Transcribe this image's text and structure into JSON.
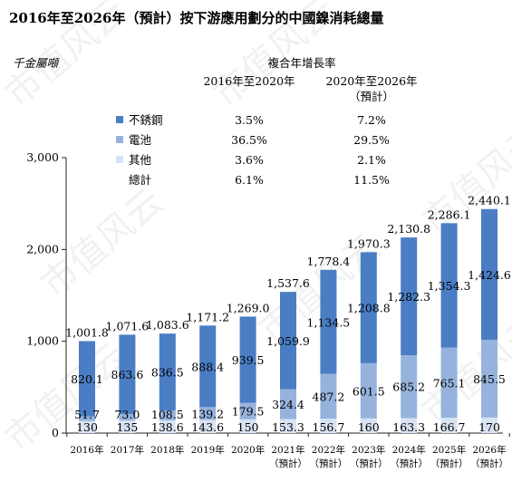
{
  "chart_data": {
    "type": "bar",
    "title": "2016年至2026年（預計）按下游應用劃分的中國鎳消耗總量",
    "unit": "千金屬噸",
    "categories": [
      [
        "2016年"
      ],
      [
        "2017年"
      ],
      [
        "2018年"
      ],
      [
        "2019年"
      ],
      [
        "2020年"
      ],
      [
        "2021年",
        "（預計）"
      ],
      [
        "2022年",
        "（預計）"
      ],
      [
        "2023年",
        "（預計）"
      ],
      [
        "2024年",
        "（預計）"
      ],
      [
        "2025年",
        "（預計）"
      ],
      [
        "2026年",
        "（預計）"
      ]
    ],
    "stacked": true,
    "series": [
      {
        "name": "其他",
        "color": "#d7e3f3",
        "values": [
          130,
          135,
          138.6,
          143.6,
          150,
          153.3,
          156.7,
          160,
          163.3,
          166.7,
          170
        ],
        "labels": [
          "130",
          "135",
          "138.6",
          "143.6",
          "150",
          "153.3",
          "156.7",
          "160",
          "163.3",
          "166.7",
          "170"
        ]
      },
      {
        "name": "電池",
        "color": "#96b3dd",
        "values": [
          51.7,
          73.0,
          108.5,
          139.2,
          179.5,
          324.4,
          487.2,
          601.5,
          685.2,
          765.1,
          845.5
        ],
        "labels": [
          "51.7",
          "73.0",
          "108.5",
          "139.2",
          "179.5",
          "324.4",
          "487.2",
          "601.5",
          "685.2",
          "765.1",
          "845.5"
        ]
      },
      {
        "name": "不銹鋼",
        "color": "#4a7dc4",
        "values": [
          820.1,
          863.6,
          836.5,
          888.4,
          939.5,
          1059.9,
          1134.5,
          1208.8,
          1282.3,
          1354.3,
          1424.6
        ],
        "labels": [
          "820.1",
          "863.6",
          "836.5",
          "888.4",
          "939.5",
          "1,059.9",
          "1,134.5",
          "1,208.8",
          "1,282.3",
          "1,354.3",
          "1,424.6"
        ]
      }
    ],
    "totals": [
      1001.8,
      1071.6,
      1083.6,
      1171.2,
      1269.0,
      1537.6,
      1778.4,
      1970.3,
      2130.8,
      2286.1,
      2440.1
    ],
    "total_labels": [
      "1,001.8",
      "1,071.6",
      "1,083.6",
      "1,171.2",
      "1,269.0",
      "1,537.6",
      "1,778.4",
      "1,970.3",
      "2,130.8",
      "2,286.1",
      "2,440.1"
    ],
    "ylim": [
      0,
      3000
    ],
    "yticks": [
      0,
      1000,
      2000,
      3000
    ],
    "ytick_labels": [
      "0",
      "1,000",
      "2,000",
      "3,000"
    ],
    "grid": false,
    "legend_table": {
      "header": "複合年增長率",
      "columns": [
        "2016年至2020年",
        [
          "2020年至2026年",
          "（預計）"
        ]
      ],
      "rows": [
        {
          "name": "不銹鋼",
          "color": "#4a7dc4",
          "values": [
            "3.5%",
            "7.2%"
          ]
        },
        {
          "name": "電池",
          "color": "#96b3dd",
          "values": [
            "36.5%",
            "29.5%"
          ]
        },
        {
          "name": "其他",
          "color": "#d7e3f3",
          "values": [
            "3.6%",
            "2.1%"
          ]
        },
        {
          "name": "總計",
          "color": null,
          "values": [
            "6.1%",
            "11.5%"
          ]
        }
      ]
    }
  },
  "watermark": "市值风云"
}
